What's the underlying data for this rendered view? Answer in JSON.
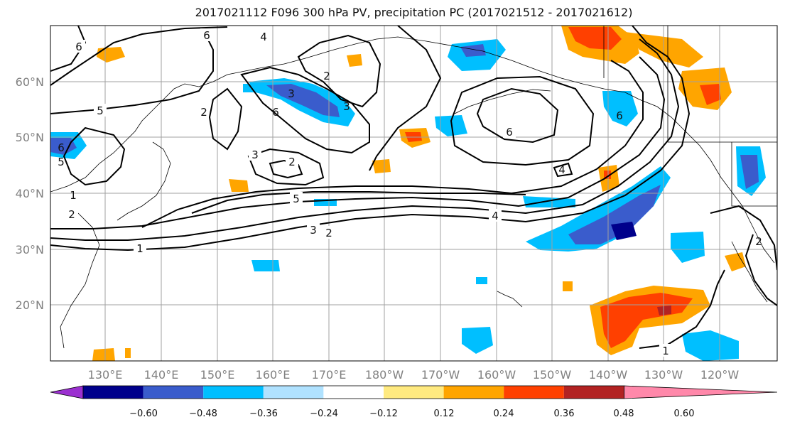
{
  "title": "2017021112 F096 300 hPa PV, precipitation PC (2017021512 - 2017021612)",
  "lat_labels": [
    "60°N",
    "50°N",
    "40°N",
    "30°N",
    "20°N"
  ],
  "lon_labels": [
    "130°E",
    "140°E",
    "150°E",
    "160°E",
    "170°E",
    "180°W",
    "170°W",
    "160°W",
    "150°W",
    "140°W",
    "130°W",
    "120°W"
  ],
  "colorbar": {
    "tick_labels": [
      "−0.60",
      "−0.48",
      "−0.36",
      "−0.24",
      "−0.12",
      "0.12",
      "0.24",
      "0.36",
      "0.48",
      "0.60"
    ],
    "colors": [
      "#9b30d0",
      "#00008b",
      "#3a5ccc",
      "#00bfff",
      "#b0e2ff",
      "#ffffff",
      "#ffea80",
      "#ffa500",
      "#ff4000",
      "#b22222",
      "#ff88aa"
    ]
  },
  "contour_labels": [
    "6",
    "6",
    "4",
    "5",
    "2",
    "6",
    "3",
    "2",
    "3",
    "6",
    "3",
    "2",
    "5",
    "4",
    "4",
    "3",
    "2",
    "1",
    "6",
    "1",
    "2",
    "6",
    "5",
    "1",
    "2"
  ]
}
